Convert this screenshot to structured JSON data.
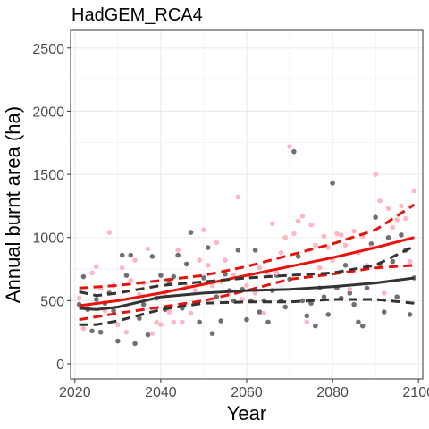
{
  "chart_data": {
    "type": "scatter",
    "title": "HadGEM_RCA4",
    "xlabel": "Year",
    "ylabel": "Annual burnt area (ha)",
    "xlim": [
      2019,
      2101
    ],
    "ylim": [
      -120,
      2640
    ],
    "x_ticks": [
      2020,
      2040,
      2060,
      2080,
      2100
    ],
    "y_ticks": [
      0,
      500,
      1000,
      1500,
      2000,
      2500
    ],
    "grid": true,
    "legend": "none",
    "colors": {
      "gray_points": "#707070",
      "pink_points": "#ffb6c1",
      "red_line": "#e8110c",
      "dark_line": "#333333",
      "grid": "#ebebeb",
      "panel_border": "#333333"
    },
    "series": [
      {
        "type": "points",
        "color_key": "gray_points",
        "points": [
          [
            2021,
            470
          ],
          [
            2022,
            690
          ],
          [
            2023,
            430
          ],
          [
            2024,
            260
          ],
          [
            2025,
            510
          ],
          [
            2026,
            250
          ],
          [
            2027,
            480
          ],
          [
            2028,
            560
          ],
          [
            2029,
            420
          ],
          [
            2030,
            180
          ],
          [
            2031,
            860
          ],
          [
            2032,
            700
          ],
          [
            2033,
            860
          ],
          [
            2034,
            160
          ],
          [
            2035,
            360
          ],
          [
            2036,
            470
          ],
          [
            2037,
            230
          ],
          [
            2038,
            850
          ],
          [
            2039,
            520
          ],
          [
            2040,
            700
          ],
          [
            2041,
            430
          ],
          [
            2042,
            640
          ],
          [
            2043,
            690
          ],
          [
            2044,
            860
          ],
          [
            2045,
            440
          ],
          [
            2046,
            790
          ],
          [
            2047,
            1040
          ],
          [
            2048,
            480
          ],
          [
            2049,
            330
          ],
          [
            2050,
            680
          ],
          [
            2051,
            920
          ],
          [
            2052,
            240
          ],
          [
            2053,
            530
          ],
          [
            2054,
            340
          ],
          [
            2055,
            710
          ],
          [
            2056,
            580
          ],
          [
            2057,
            500
          ],
          [
            2058,
            900
          ],
          [
            2059,
            590
          ],
          [
            2060,
            350
          ],
          [
            2061,
            500
          ],
          [
            2062,
            900
          ],
          [
            2063,
            410
          ],
          [
            2064,
            500
          ],
          [
            2065,
            330
          ],
          [
            2066,
            580
          ],
          [
            2067,
            700
          ],
          [
            2068,
            500
          ],
          [
            2069,
            450
          ],
          [
            2070,
            670
          ],
          [
            2071,
            1680
          ],
          [
            2072,
            850
          ],
          [
            2073,
            500
          ],
          [
            2074,
            380
          ],
          [
            2075,
            480
          ],
          [
            2076,
            300
          ],
          [
            2077,
            600
          ],
          [
            2078,
            530
          ],
          [
            2079,
            390
          ],
          [
            2080,
            1430
          ],
          [
            2081,
            600
          ],
          [
            2082,
            520
          ],
          [
            2083,
            780
          ],
          [
            2084,
            560
          ],
          [
            2085,
            470
          ],
          [
            2086,
            330
          ],
          [
            2087,
            300
          ],
          [
            2088,
            600
          ],
          [
            2089,
            950
          ],
          [
            2090,
            1160
          ],
          [
            2091,
            790
          ],
          [
            2092,
            410
          ],
          [
            2093,
            1000
          ],
          [
            2094,
            810
          ],
          [
            2095,
            530
          ],
          [
            2096,
            1020
          ],
          [
            2097,
            900
          ],
          [
            2098,
            390
          ],
          [
            2099,
            680
          ]
        ]
      },
      {
        "type": "points",
        "color_key": "pink_points",
        "points": [
          [
            2021,
            520
          ],
          [
            2022,
            280
          ],
          [
            2023,
            460
          ],
          [
            2024,
            720
          ],
          [
            2025,
            770
          ],
          [
            2026,
            600
          ],
          [
            2027,
            420
          ],
          [
            2028,
            1040
          ],
          [
            2029,
            620
          ],
          [
            2030,
            310
          ],
          [
            2031,
            760
          ],
          [
            2032,
            250
          ],
          [
            2033,
            660
          ],
          [
            2034,
            820
          ],
          [
            2035,
            550
          ],
          [
            2036,
            640
          ],
          [
            2037,
            910
          ],
          [
            2038,
            240
          ],
          [
            2039,
            330
          ],
          [
            2040,
            310
          ],
          [
            2041,
            560
          ],
          [
            2042,
            410
          ],
          [
            2043,
            330
          ],
          [
            2044,
            900
          ],
          [
            2045,
            330
          ],
          [
            2046,
            610
          ],
          [
            2047,
            400
          ],
          [
            2048,
            580
          ],
          [
            2049,
            820
          ],
          [
            2050,
            1060
          ],
          [
            2051,
            780
          ],
          [
            2052,
            620
          ],
          [
            2053,
            960
          ],
          [
            2054,
            650
          ],
          [
            2055,
            820
          ],
          [
            2056,
            560
          ],
          [
            2057,
            700
          ],
          [
            2058,
            1320
          ],
          [
            2059,
            510
          ],
          [
            2060,
            620
          ],
          [
            2061,
            690
          ],
          [
            2062,
            560
          ],
          [
            2063,
            760
          ],
          [
            2064,
            400
          ],
          [
            2065,
            700
          ],
          [
            2066,
            1110
          ],
          [
            2067,
            720
          ],
          [
            2068,
            880
          ],
          [
            2069,
            1000
          ],
          [
            2070,
            1720
          ],
          [
            2071,
            1030
          ],
          [
            2072,
            1130
          ],
          [
            2073,
            1170
          ],
          [
            2074,
            330
          ],
          [
            2075,
            1100
          ],
          [
            2076,
            940
          ],
          [
            2077,
            760
          ],
          [
            2078,
            1010
          ],
          [
            2079,
            920
          ],
          [
            2080,
            820
          ],
          [
            2081,
            1030
          ],
          [
            2082,
            1020
          ],
          [
            2083,
            940
          ],
          [
            2084,
            590
          ],
          [
            2085,
            1050
          ],
          [
            2086,
            880
          ],
          [
            2087,
            1010
          ],
          [
            2088,
            780
          ],
          [
            2089,
            920
          ],
          [
            2090,
            1500
          ],
          [
            2091,
            1290
          ],
          [
            2092,
            560
          ],
          [
            2093,
            1230
          ],
          [
            2094,
            1080
          ],
          [
            2095,
            1140
          ],
          [
            2096,
            1250
          ],
          [
            2097,
            1150
          ],
          [
            2098,
            810
          ],
          [
            2099,
            1370
          ]
        ]
      },
      {
        "type": "line",
        "color_key": "red_line",
        "dash": false,
        "points": [
          [
            2021,
            460
          ],
          [
            2030,
            500
          ],
          [
            2040,
            560
          ],
          [
            2050,
            630
          ],
          [
            2060,
            700
          ],
          [
            2070,
            770
          ],
          [
            2080,
            840
          ],
          [
            2090,
            920
          ],
          [
            2099,
            1000
          ]
        ]
      },
      {
        "type": "line",
        "color_key": "red_line",
        "dash": true,
        "points": [
          [
            2021,
            600
          ],
          [
            2030,
            620
          ],
          [
            2040,
            660
          ],
          [
            2050,
            700
          ],
          [
            2060,
            770
          ],
          [
            2070,
            860
          ],
          [
            2080,
            950
          ],
          [
            2090,
            1060
          ],
          [
            2099,
            1260
          ]
        ]
      },
      {
        "type": "line",
        "color_key": "red_line",
        "dash": true,
        "points": [
          [
            2021,
            350
          ],
          [
            2030,
            400
          ],
          [
            2040,
            450
          ],
          [
            2050,
            500
          ],
          [
            2060,
            580
          ],
          [
            2070,
            670
          ],
          [
            2080,
            710
          ],
          [
            2090,
            760
          ],
          [
            2099,
            780
          ]
        ]
      },
      {
        "type": "line",
        "color_key": "dark_line",
        "dash": false,
        "points": [
          [
            2021,
            440
          ],
          [
            2025,
            430
          ],
          [
            2030,
            450
          ],
          [
            2040,
            530
          ],
          [
            2050,
            560
          ],
          [
            2060,
            580
          ],
          [
            2070,
            590
          ],
          [
            2080,
            610
          ],
          [
            2090,
            640
          ],
          [
            2099,
            680
          ]
        ]
      },
      {
        "type": "line",
        "color_key": "dark_line",
        "dash": true,
        "points": [
          [
            2021,
            570
          ],
          [
            2025,
            540
          ],
          [
            2030,
            560
          ],
          [
            2040,
            620
          ],
          [
            2050,
            650
          ],
          [
            2060,
            680
          ],
          [
            2070,
            700
          ],
          [
            2080,
            720
          ],
          [
            2090,
            780
          ],
          [
            2099,
            930
          ]
        ]
      },
      {
        "type": "line",
        "color_key": "dark_line",
        "dash": true,
        "points": [
          [
            2021,
            310
          ],
          [
            2025,
            310
          ],
          [
            2030,
            340
          ],
          [
            2040,
            430
          ],
          [
            2050,
            480
          ],
          [
            2060,
            490
          ],
          [
            2070,
            490
          ],
          [
            2080,
            510
          ],
          [
            2090,
            510
          ],
          [
            2099,
            480
          ]
        ]
      }
    ]
  }
}
